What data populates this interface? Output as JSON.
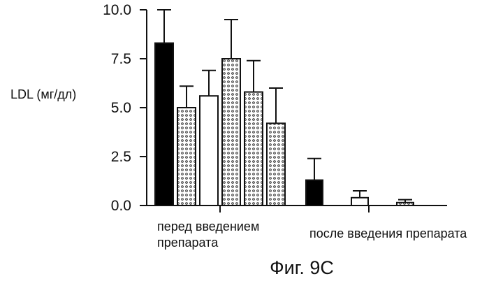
{
  "chart_data": {
    "type": "bar",
    "ylabel": "LDL (мг/дл)",
    "ylim": [
      0,
      10
    ],
    "y_ticks": [
      "0.0",
      "2.5",
      "5.0",
      "7.5",
      "10.0"
    ],
    "groups": [
      {
        "label_lines": [
          "перед введением",
          "препарата"
        ],
        "bars": [
          {
            "value": 8.3,
            "error": 1.7,
            "fill": "solid"
          },
          {
            "value": 5.0,
            "error": 1.1,
            "fill": "pattern"
          },
          {
            "value": 5.6,
            "error": 1.3,
            "fill": "open"
          },
          {
            "value": 7.5,
            "error": 2.0,
            "fill": "pattern"
          },
          {
            "value": 5.8,
            "error": 1.6,
            "fill": "pattern"
          },
          {
            "value": 4.2,
            "error": 1.8,
            "fill": "pattern"
          }
        ]
      },
      {
        "label_lines": [
          "после введения препарата"
        ],
        "bars": [
          {
            "value": 1.3,
            "error": 1.1,
            "fill": "solid"
          },
          {
            "value": 0.4,
            "error": 0.35,
            "fill": "open"
          },
          {
            "value": 0.15,
            "error": 0.15,
            "fill": "pattern"
          }
        ]
      }
    ]
  },
  "figure": {
    "caption": "Фиг. 9С"
  }
}
